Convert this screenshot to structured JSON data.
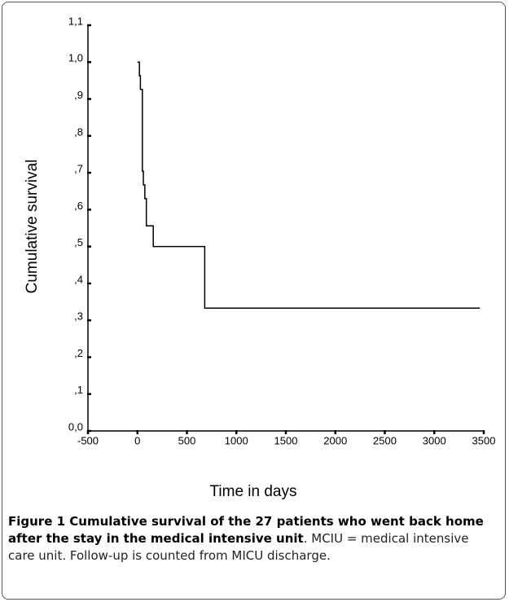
{
  "chart_data": {
    "type": "step",
    "xlabel": "Time in days",
    "ylabel": "Cumulative survival",
    "x": [
      0,
      20,
      30,
      50,
      60,
      75,
      90,
      160,
      680,
      3460
    ],
    "values": [
      1.0,
      0.963,
      0.926,
      0.704,
      0.667,
      0.63,
      0.556,
      0.5,
      0.333,
      0.333
    ],
    "color": "#000000",
    "xlim": [
      -500,
      3500
    ],
    "xticks": [
      -500,
      0,
      500,
      1000,
      1500,
      2000,
      2500,
      3000,
      3500
    ],
    "ylim": [
      0,
      1.1
    ],
    "yticks": [
      {
        "value": 0,
        "label": "0,0"
      },
      {
        "value": 0.1,
        "label": ",1"
      },
      {
        "value": 0.2,
        "label": ",2"
      },
      {
        "value": 0.3,
        "label": ",3"
      },
      {
        "value": 0.4,
        "label": ",4"
      },
      {
        "value": 0.5,
        "label": ",5"
      },
      {
        "value": 0.6,
        "label": ",6"
      },
      {
        "value": 0.7,
        "label": ",7"
      },
      {
        "value": 0.8,
        "label": ",8"
      },
      {
        "value": 0.9,
        "label": ",9"
      },
      {
        "value": 1.0,
        "label": "1,0"
      },
      {
        "value": 1.1,
        "label": "1,1"
      }
    ],
    "grid": false
  },
  "caption": {
    "bold": "Figure 1 Cumulative survival of the 27 patients who went back home after the stay in the medical intensive unit",
    "text": ". MCIU = medical intensive care unit. Follow-up is counted from MICU discharge."
  }
}
